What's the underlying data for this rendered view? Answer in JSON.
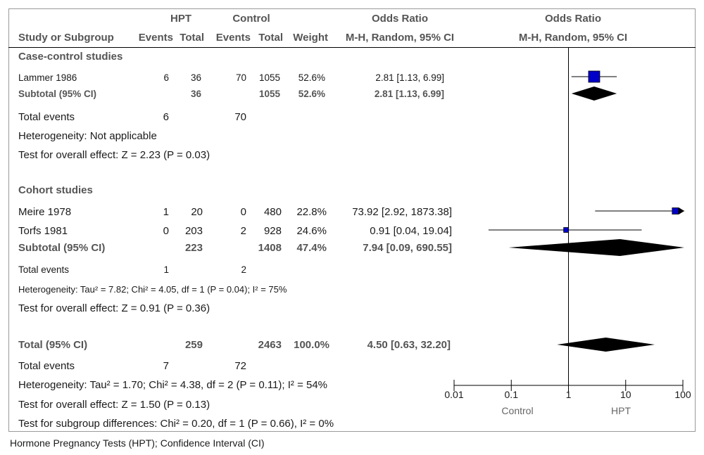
{
  "header": {
    "group1_label": "HPT",
    "group2_label": "Control",
    "or_title": "Odds Ratio",
    "or_method": "M-H, Random, 95% CI",
    "plot_title": "Odds Ratio",
    "plot_method": "M-H, Random, 95% CI",
    "col_study": "Study or Subgroup",
    "col_events1": "Events",
    "col_total1": "Total",
    "col_events2": "Events",
    "col_total2": "Total",
    "col_weight": "Weight"
  },
  "case_control": {
    "title": "Case-control studies",
    "study": {
      "name": "Lammer 1986",
      "events1": "6",
      "total1": "36",
      "events2": "70",
      "total2": "1055",
      "weight": "52.6%",
      "ci": "2.81 [1.13, 6.99]"
    },
    "subtotal": {
      "label": "Subtotal (95% CI)",
      "total1": "36",
      "total2": "1055",
      "weight": "52.6%",
      "ci": "2.81 [1.13, 6.99]"
    },
    "total_events": {
      "label": "Total events",
      "events1": "6",
      "events2": "70"
    },
    "heterogeneity": "Heterogeneity: Not applicable",
    "overall": "Test for overall effect: Z = 2.23 (P = 0.03)"
  },
  "cohort": {
    "title": "Cohort studies",
    "studies": [
      {
        "name": "Meire 1978",
        "events1": "1",
        "total1": "20",
        "events2": "0",
        "total2": "480",
        "weight": "22.8%",
        "ci": "73.92 [2.92, 1873.38]"
      },
      {
        "name": "Torfs 1981",
        "events1": "0",
        "total1": "203",
        "events2": "2",
        "total2": "928",
        "weight": "24.6%",
        "ci": "0.91 [0.04, 19.04]"
      }
    ],
    "subtotal": {
      "label": "Subtotal (95% CI)",
      "total1": "223",
      "total2": "1408",
      "weight": "47.4%",
      "ci": "7.94 [0.09, 690.55]"
    },
    "total_events": {
      "label": "Total events",
      "events1": "1",
      "events2": "2"
    },
    "heterogeneity": "Heterogeneity: Tau² = 7.82; Chi² = 4.05, df = 1 (P = 0.04); I² = 75%",
    "overall": "Test for overall effect: Z = 0.91 (P = 0.36)"
  },
  "total": {
    "label": "Total (95% CI)",
    "total1": "259",
    "total2": "2463",
    "weight": "100.0%",
    "ci": "4.50 [0.63, 32.20]",
    "total_events": {
      "label": "Total events",
      "events1": "7",
      "events2": "72"
    },
    "heterogeneity": "Heterogeneity: Tau² = 1.70; Chi² = 4.38, df = 2 (P = 0.11); I² = 54%",
    "overall": "Test for overall effect: Z = 1.50 (P = 0.13)",
    "subgroup": "Test for subgroup differences: Chi² = 0.20, df = 1 (P = 0.66), I² = 0%"
  },
  "caption": "Hormone Pregnancy Tests (HPT); Confidence Interval (CI)",
  "colors": {
    "study_marker": "#0000c8",
    "diamond": "#000000",
    "text_gray": "#555555"
  },
  "chart_data": {
    "type": "forest",
    "x_scale": "log",
    "xlim": [
      0.01,
      100
    ],
    "ticks": [
      "0.01",
      "0.1",
      "1",
      "10",
      "100"
    ],
    "tick_values": [
      0.01,
      0.1,
      1,
      10,
      100
    ],
    "left_label": "Control",
    "right_label": "HPT",
    "null_value": 1,
    "studies": [
      {
        "name": "Lammer 1986",
        "or": 2.81,
        "lo": 1.13,
        "hi": 6.99,
        "weight": 52.6
      },
      {
        "name": "Meire 1978",
        "or": 73.92,
        "lo": 2.92,
        "hi": 1873.38,
        "weight": 22.8
      },
      {
        "name": "Torfs 1981",
        "or": 0.91,
        "lo": 0.04,
        "hi": 19.04,
        "weight": 24.6
      }
    ],
    "pooled": [
      {
        "name": "Subtotal case-control",
        "or": 2.81,
        "lo": 1.13,
        "hi": 6.99
      },
      {
        "name": "Subtotal cohort",
        "or": 7.94,
        "lo": 0.09,
        "hi": 690.55
      },
      {
        "name": "Total",
        "or": 4.5,
        "lo": 0.63,
        "hi": 32.2
      }
    ]
  }
}
